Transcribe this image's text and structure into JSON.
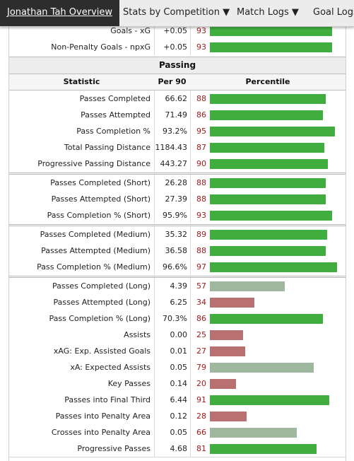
{
  "nav": {
    "tabs": [
      {
        "label": "Jonathan Tah Overview",
        "active": true
      },
      {
        "label": "Stats by Competition ▼",
        "active": false
      },
      {
        "label": "Match Logs ▼",
        "active": false
      },
      {
        "label": "Goal Logs",
        "active": false
      }
    ]
  },
  "top_rows": [
    {
      "statistic": "Goals - xG",
      "per90": "+0.05",
      "percentile": 93
    },
    {
      "statistic": "Non-Penalty Goals - npxG",
      "per90": "+0.05",
      "percentile": 93
    }
  ],
  "section_title": "Passing",
  "columns": {
    "statistic": "Statistic",
    "per90": "Per 90",
    "percentile": "Percentile"
  },
  "groups": [
    [
      {
        "statistic": "Passes Completed",
        "per90": "66.62",
        "percentile": 88
      },
      {
        "statistic": "Passes Attempted",
        "per90": "71.49",
        "percentile": 86
      },
      {
        "statistic": "Pass Completion %",
        "per90": "93.2%",
        "percentile": 95
      },
      {
        "statistic": "Total Passing Distance",
        "per90": "1184.43",
        "percentile": 87
      },
      {
        "statistic": "Progressive Passing Distance",
        "per90": "443.27",
        "percentile": 90
      }
    ],
    [
      {
        "statistic": "Passes Completed (Short)",
        "per90": "26.28",
        "percentile": 88
      },
      {
        "statistic": "Passes Attempted (Short)",
        "per90": "27.39",
        "percentile": 88
      },
      {
        "statistic": "Pass Completion % (Short)",
        "per90": "95.9%",
        "percentile": 93
      }
    ],
    [
      {
        "statistic": "Passes Completed (Medium)",
        "per90": "35.32",
        "percentile": 89
      },
      {
        "statistic": "Passes Attempted (Medium)",
        "per90": "36.58",
        "percentile": 88
      },
      {
        "statistic": "Pass Completion % (Medium)",
        "per90": "96.6%",
        "percentile": 97
      }
    ],
    [
      {
        "statistic": "Passes Completed (Long)",
        "per90": "4.39",
        "percentile": 57
      },
      {
        "statistic": "Passes Attempted (Long)",
        "per90": "6.25",
        "percentile": 34
      },
      {
        "statistic": "Pass Completion % (Long)",
        "per90": "70.3%",
        "percentile": 86
      },
      {
        "statistic": "Assists",
        "per90": "0.00",
        "percentile": 25
      },
      {
        "statistic": "xAG: Exp. Assisted Goals",
        "per90": "0.01",
        "percentile": 27
      },
      {
        "statistic": "xA: Expected Assists",
        "per90": "0.05",
        "percentile": 79
      },
      {
        "statistic": "Key Passes",
        "per90": "0.14",
        "percentile": 20
      },
      {
        "statistic": "Passes into Final Third",
        "per90": "6.44",
        "percentile": 91
      },
      {
        "statistic": "Passes into Penalty Area",
        "per90": "0.12",
        "percentile": 28
      },
      {
        "statistic": "Crosses into Penalty Area",
        "per90": "0.05",
        "percentile": 66
      },
      {
        "statistic": "Progressive Passes",
        "per90": "4.68",
        "percentile": 81
      }
    ]
  ],
  "colors": {
    "active_tab_bg": "#2d2d2d",
    "percentile_text": "#a11b1b",
    "bar_high": "#3fae3f",
    "bar_mid": "#9fb79f",
    "bar_low": "#b87070"
  }
}
